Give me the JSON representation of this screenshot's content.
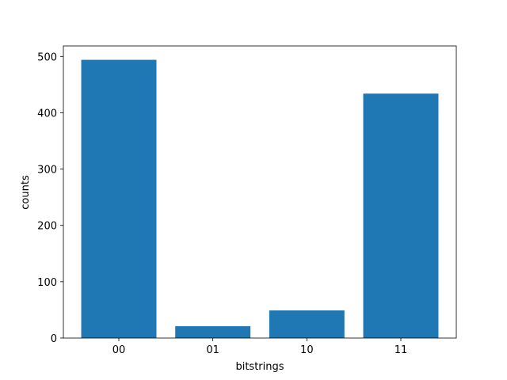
{
  "chart_data": {
    "type": "bar",
    "categories": [
      "00",
      "01",
      "10",
      "11"
    ],
    "values": [
      494,
      21,
      49,
      434
    ],
    "color": "#1f77b4",
    "xlabel": "bitstrings",
    "ylabel": "counts",
    "ylim": [
      0,
      518.7
    ],
    "yticks": [
      0,
      100,
      200,
      300,
      400,
      500
    ],
    "grid": false
  }
}
